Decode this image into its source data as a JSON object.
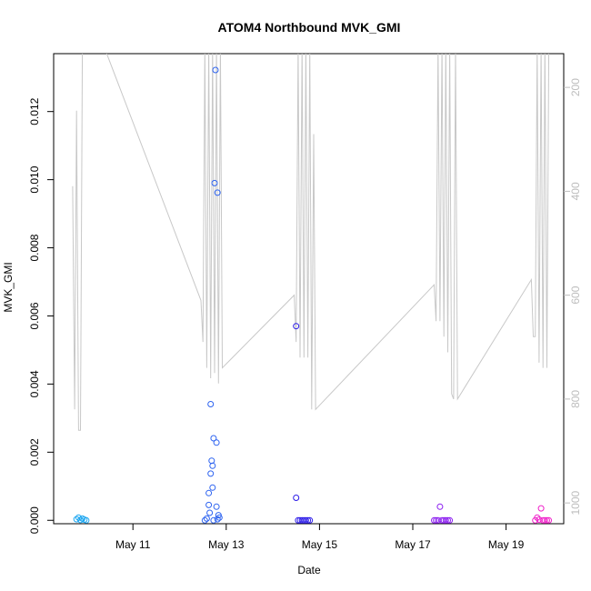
{
  "chart_data": {
    "type": "scatter",
    "title": "ATOM4 Northbound MVK_GMI",
    "xlabel": "Date",
    "ylabel": "MVK_GMI",
    "x_unit": "date",
    "xlim": [
      "2016-05-09 07:12",
      "2016-05-20 05:40"
    ],
    "ylim": [
      -0.0001,
      0.0137
    ],
    "x_ticks": [
      {
        "value": "2016-05-11",
        "label": "May 11"
      },
      {
        "value": "2016-05-13",
        "label": "May 13"
      },
      {
        "value": "2016-05-15",
        "label": "May 15"
      },
      {
        "value": "2016-05-17",
        "label": "May 17"
      },
      {
        "value": "2016-05-19",
        "label": "May 19"
      }
    ],
    "y_ticks": [
      {
        "value": 0.0,
        "label": "0.000"
      },
      {
        "value": 0.002,
        "label": "0.002"
      },
      {
        "value": 0.004,
        "label": "0.004"
      },
      {
        "value": 0.006,
        "label": "0.006"
      },
      {
        "value": 0.008,
        "label": "0.008"
      },
      {
        "value": 0.01,
        "label": "0.010"
      },
      {
        "value": 0.012,
        "label": "0.012"
      }
    ],
    "secondary_axis": {
      "side": "right",
      "reversed": true,
      "range": [
        135,
        1040
      ],
      "ticks": [
        200,
        400,
        600,
        800,
        1000
      ],
      "line_color": "#c8c8c8"
    },
    "grid": false,
    "legend": "none",
    "series": [
      {
        "color": "#1ca6f0",
        "points": [
          [
            "2016-05-09 19:00",
            3e-05
          ],
          [
            "2016-05-09 20:00",
            8e-05
          ],
          [
            "2016-05-09 21:00",
            1e-05
          ],
          [
            "2016-05-09 22:00",
            5e-05
          ],
          [
            "2016-05-09 23:00",
            2e-05
          ],
          [
            "2016-05-10 00:00",
            0.0
          ]
        ]
      },
      {
        "color": "#2d63f0",
        "points": [
          [
            "2016-05-12 13:00",
            0.0
          ],
          [
            "2016-05-12 14:00",
            5e-05
          ],
          [
            "2016-05-12 15:00",
            0.00045
          ],
          [
            "2016-05-12 15:30",
            0.00022
          ],
          [
            "2016-05-12 16:00",
            0.00341
          ],
          [
            "2016-05-12 16:00",
            0.00137
          ],
          [
            "2016-05-12 16:30",
            0.00175
          ],
          [
            "2016-05-12 17:00",
            0.0016
          ],
          [
            "2016-05-12 17:00",
            0.00096
          ],
          [
            "2016-05-12 17:30",
            0.00241
          ],
          [
            "2016-05-12 17:30",
            0.0
          ],
          [
            "2016-05-12 18:00",
            0.0099
          ],
          [
            "2016-05-12 18:30",
            0.01322
          ],
          [
            "2016-05-12 19:00",
            0.00228
          ],
          [
            "2016-05-12 19:00",
            0.0004
          ],
          [
            "2016-05-12 19:30",
            0.00962
          ],
          [
            "2016-05-12 20:00",
            0.00015
          ],
          [
            "2016-05-12 20:30",
            8e-05
          ],
          [
            "2016-05-12 15:00",
            0.0008
          ],
          [
            "2016-05-12 19:30",
            3e-05
          ]
        ]
      },
      {
        "color": "#2b1ae8",
        "points": [
          [
            "2016-05-14 12:00",
            0.0057
          ],
          [
            "2016-05-14 12:00",
            0.00066
          ],
          [
            "2016-05-14 13:00",
            0.0
          ],
          [
            "2016-05-14 14:00",
            0.0
          ],
          [
            "2016-05-14 15:00",
            0.0
          ],
          [
            "2016-05-14 16:00",
            0.0
          ],
          [
            "2016-05-14 17:00",
            0.0
          ],
          [
            "2016-05-14 18:00",
            0.0
          ],
          [
            "2016-05-14 19:00",
            0.0
          ]
        ]
      },
      {
        "color": "#8a1cf0",
        "points": [
          [
            "2016-05-17 11:00",
            0.0
          ],
          [
            "2016-05-17 12:00",
            0.0
          ],
          [
            "2016-05-17 13:00",
            0.0
          ],
          [
            "2016-05-17 14:00",
            0.0004
          ],
          [
            "2016-05-17 15:00",
            0.0
          ],
          [
            "2016-05-17 16:00",
            0.0
          ],
          [
            "2016-05-17 17:00",
            0.0
          ],
          [
            "2016-05-17 18:00",
            0.0
          ],
          [
            "2016-05-17 19:00",
            0.0
          ]
        ]
      },
      {
        "color": "#f01fc9",
        "points": [
          [
            "2016-05-19 15:00",
            0.0
          ],
          [
            "2016-05-19 16:00",
            8e-05
          ],
          [
            "2016-05-19 17:00",
            2e-05
          ],
          [
            "2016-05-19 18:00",
            0.00035
          ],
          [
            "2016-05-19 19:00",
            0.0
          ],
          [
            "2016-05-19 20:00",
            0.0
          ],
          [
            "2016-05-19 21:00",
            0.0
          ],
          [
            "2016-05-19 22:00",
            0.0
          ]
        ]
      }
    ],
    "depth_line": [
      [
        "2016-05-09 17:00",
        390
      ],
      [
        "2016-05-09 18:00",
        820
      ],
      [
        "2016-05-09 19:00",
        245
      ],
      [
        "2016-05-09 20:00",
        860
      ],
      [
        "2016-05-09 21:00",
        860
      ],
      [
        "2016-05-09 22:00",
        120
      ],
      [
        "2016-05-10 09:00",
        120
      ],
      [
        "2016-05-12 11:00",
        610
      ],
      [
        "2016-05-12 12:00",
        690
      ],
      [
        "2016-05-12 13:00",
        120
      ],
      [
        "2016-05-12 14:00",
        740
      ],
      [
        "2016-05-12 15:00",
        120
      ],
      [
        "2016-05-12 16:00",
        760
      ],
      [
        "2016-05-12 17:00",
        120
      ],
      [
        "2016-05-12 18:00",
        750
      ],
      [
        "2016-05-12 19:00",
        120
      ],
      [
        "2016-05-12 20:00",
        770
      ],
      [
        "2016-05-12 21:00",
        120
      ],
      [
        "2016-05-12 22:00",
        740
      ],
      [
        "2016-05-14 11:00",
        600
      ],
      [
        "2016-05-14 12:00",
        690
      ],
      [
        "2016-05-14 13:00",
        120
      ],
      [
        "2016-05-14 14:00",
        720
      ],
      [
        "2016-05-14 15:00",
        120
      ],
      [
        "2016-05-14 16:00",
        720
      ],
      [
        "2016-05-14 17:00",
        120
      ],
      [
        "2016-05-14 18:00",
        720
      ],
      [
        "2016-05-14 19:00",
        120
      ],
      [
        "2016-05-14 20:00",
        820
      ],
      [
        "2016-05-14 21:00",
        290
      ],
      [
        "2016-05-14 22:00",
        820
      ],
      [
        "2016-05-17 11:00",
        580
      ],
      [
        "2016-05-17 12:00",
        650
      ],
      [
        "2016-05-17 13:00",
        120
      ],
      [
        "2016-05-17 14:00",
        650
      ],
      [
        "2016-05-17 15:00",
        120
      ],
      [
        "2016-05-17 16:00",
        680
      ],
      [
        "2016-05-17 17:00",
        120
      ],
      [
        "2016-05-17 18:00",
        710
      ],
      [
        "2016-05-17 19:00",
        120
      ],
      [
        "2016-05-17 20:00",
        790
      ],
      [
        "2016-05-17 21:00",
        800
      ],
      [
        "2016-05-17 22:00",
        120
      ],
      [
        "2016-05-17 23:00",
        800
      ],
      [
        "2016-05-19 13:00",
        570
      ],
      [
        "2016-05-19 14:00",
        680
      ],
      [
        "2016-05-19 15:00",
        680
      ],
      [
        "2016-05-19 16:00",
        120
      ],
      [
        "2016-05-19 17:00",
        730
      ],
      [
        "2016-05-19 18:00",
        120
      ],
      [
        "2016-05-19 19:00",
        740
      ],
      [
        "2016-05-19 20:00",
        120
      ],
      [
        "2016-05-19 21:00",
        740
      ],
      [
        "2016-05-19 22:00",
        120
      ]
    ]
  }
}
